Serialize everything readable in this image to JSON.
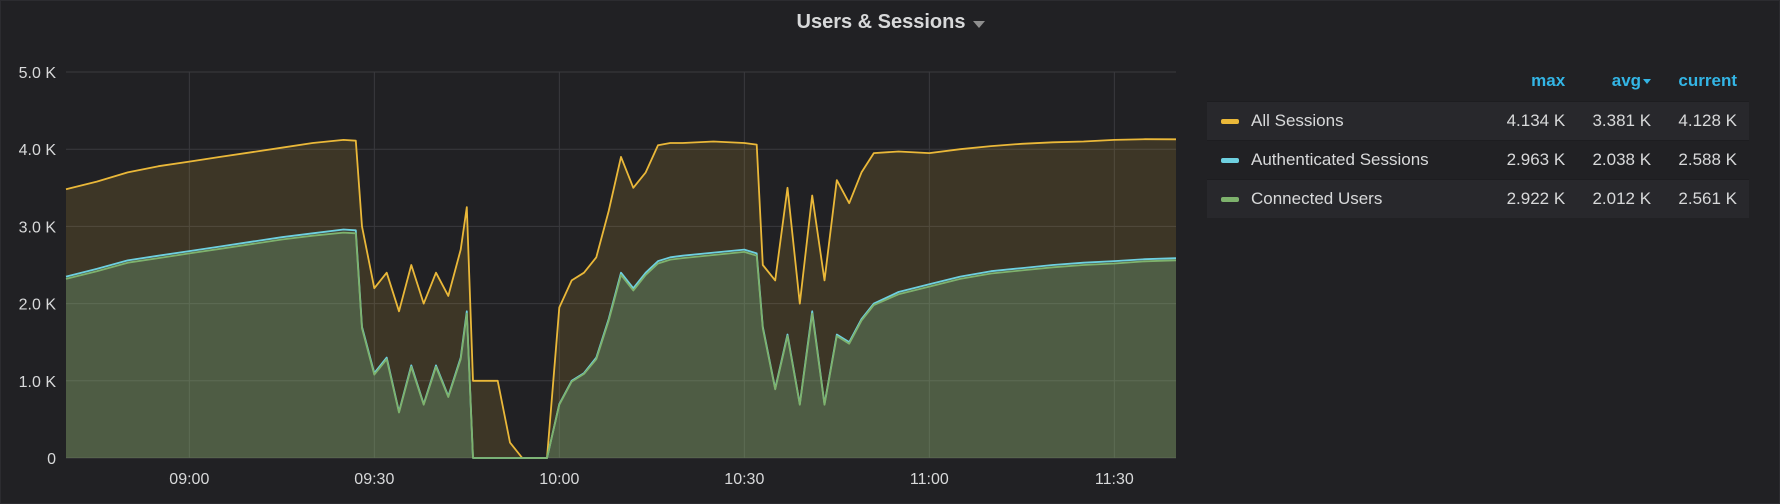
{
  "panel": {
    "title": "Users & Sessions"
  },
  "legend": {
    "columns": [
      "max",
      "avg",
      "current"
    ],
    "rows": [
      {
        "name": "All Sessions",
        "color": "#eab839",
        "max": "4.134 K",
        "avg": "3.381 K",
        "current": "4.128 K"
      },
      {
        "name": "Authenticated Sessions",
        "color": "#6ed0e0",
        "max": "2.963 K",
        "avg": "2.038 K",
        "current": "2.588 K"
      },
      {
        "name": "Connected Users",
        "color": "#7eb26d",
        "max": "2.922 K",
        "avg": "2.012 K",
        "current": "2.561 K"
      }
    ]
  },
  "chart_data": {
    "type": "area",
    "title": "Users & Sessions",
    "x_ticks": [
      "09:00",
      "09:30",
      "10:00",
      "10:30",
      "11:00",
      "11:30"
    ],
    "y_ticks": [
      "0",
      "1.0 K",
      "2.0 K",
      "3.0 K",
      "4.0 K",
      "5.0 K"
    ],
    "xlim": [
      "08:40",
      "11:40"
    ],
    "ylim": [
      0,
      5000
    ],
    "grid": true,
    "legend_position": "right",
    "x": [
      "08:40",
      "08:45",
      "08:50",
      "08:55",
      "09:00",
      "09:05",
      "09:10",
      "09:15",
      "09:20",
      "09:25",
      "09:27",
      "09:28",
      "09:30",
      "09:32",
      "09:34",
      "09:36",
      "09:38",
      "09:40",
      "09:42",
      "09:44",
      "09:45",
      "09:46",
      "09:48",
      "09:50",
      "09:52",
      "09:54",
      "09:56",
      "09:58",
      "10:00",
      "10:02",
      "10:04",
      "10:06",
      "10:08",
      "10:10",
      "10:12",
      "10:14",
      "10:16",
      "10:18",
      "10:20",
      "10:25",
      "10:30",
      "10:32",
      "10:33",
      "10:35",
      "10:37",
      "10:39",
      "10:41",
      "10:43",
      "10:45",
      "10:47",
      "10:49",
      "10:51",
      "10:55",
      "11:00",
      "11:05",
      "11:10",
      "11:15",
      "11:20",
      "11:25",
      "11:30",
      "11:35",
      "11:40"
    ],
    "series": [
      {
        "name": "All Sessions",
        "color": "#eab839",
        "values": [
          3480,
          3580,
          3700,
          3780,
          3840,
          3900,
          3960,
          4020,
          4080,
          4120,
          4110,
          3000,
          2200,
          2400,
          1900,
          2500,
          2000,
          2400,
          2100,
          2700,
          3250,
          1000,
          1000,
          1000,
          200,
          0,
          0,
          0,
          1950,
          2300,
          2400,
          2600,
          3200,
          3900,
          3500,
          3700,
          4050,
          4080,
          4080,
          4100,
          4080,
          4060,
          2500,
          2300,
          3500,
          2000,
          3400,
          2300,
          3600,
          3300,
          3700,
          3950,
          3970,
          3950,
          4000,
          4040,
          4070,
          4090,
          4100,
          4120,
          4130,
          4128
        ]
      },
      {
        "name": "Authenticated Sessions",
        "color": "#6ed0e0",
        "values": [
          2350,
          2450,
          2560,
          2620,
          2680,
          2740,
          2800,
          2860,
          2910,
          2960,
          2950,
          1700,
          1100,
          1300,
          600,
          1200,
          700,
          1200,
          800,
          1300,
          1900,
          0,
          0,
          0,
          0,
          0,
          0,
          0,
          700,
          1000,
          1100,
          1300,
          1800,
          2400,
          2200,
          2400,
          2550,
          2600,
          2620,
          2660,
          2700,
          2650,
          1700,
          900,
          1600,
          700,
          1900,
          700,
          1600,
          1500,
          1800,
          2000,
          2150,
          2250,
          2350,
          2420,
          2460,
          2500,
          2530,
          2550,
          2575,
          2588
        ]
      },
      {
        "name": "Connected Users",
        "color": "#7eb26d",
        "values": [
          2320,
          2420,
          2530,
          2590,
          2650,
          2710,
          2770,
          2830,
          2880,
          2920,
          2910,
          1680,
          1080,
          1280,
          590,
          1180,
          690,
          1180,
          790,
          1280,
          1870,
          0,
          0,
          0,
          0,
          0,
          0,
          0,
          690,
          990,
          1090,
          1280,
          1780,
          2370,
          2170,
          2370,
          2520,
          2570,
          2590,
          2630,
          2670,
          2620,
          1680,
          890,
          1580,
          690,
          1870,
          690,
          1580,
          1480,
          1780,
          1980,
          2120,
          2220,
          2320,
          2390,
          2430,
          2470,
          2500,
          2520,
          2548,
          2561
        ]
      }
    ]
  }
}
